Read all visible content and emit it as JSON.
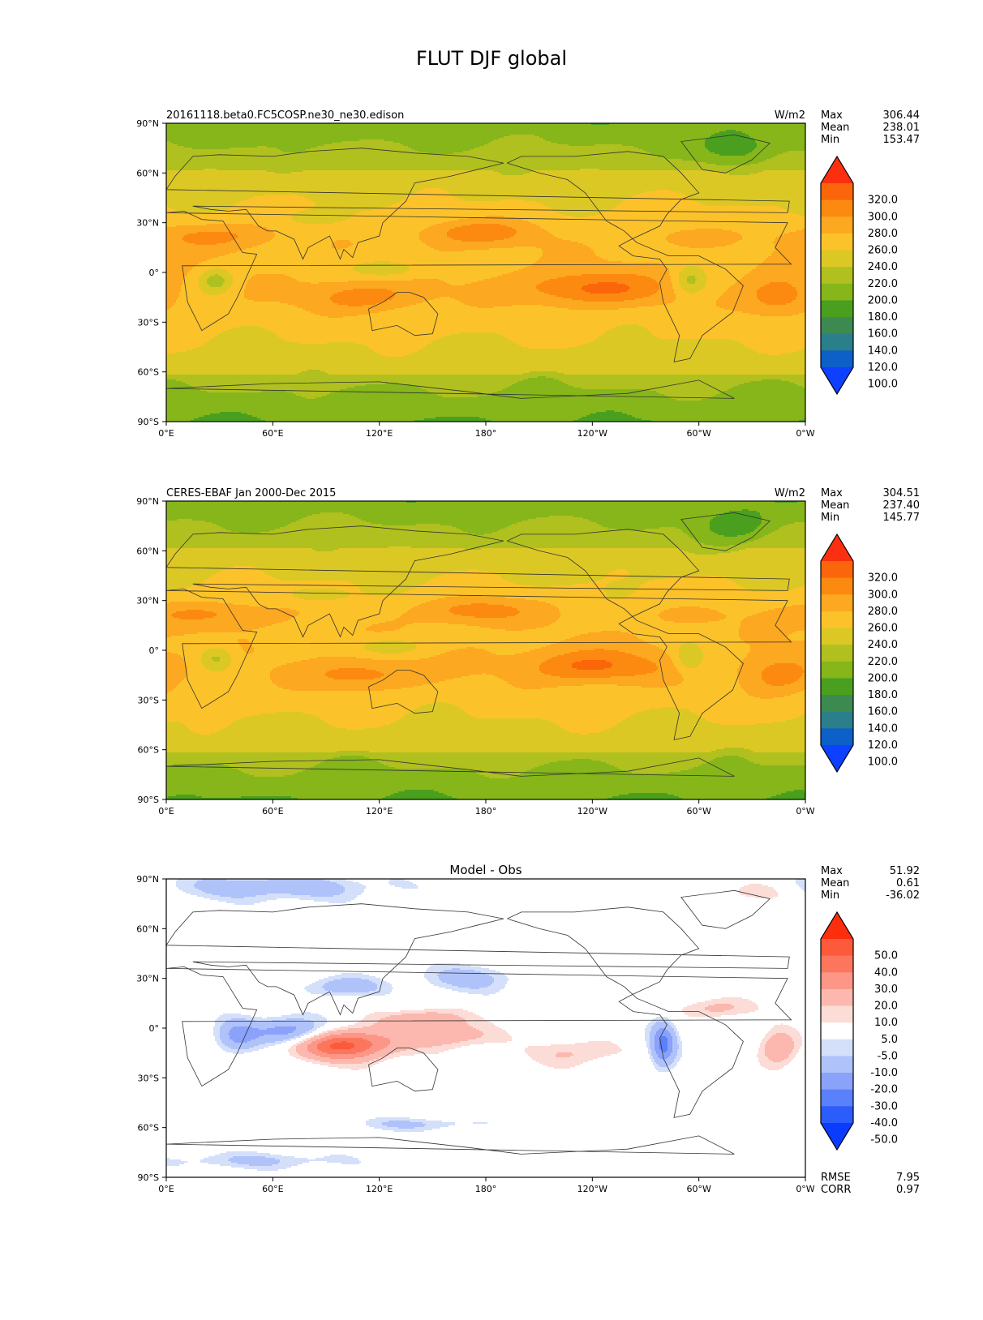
{
  "figure": {
    "title": "FLUT DJF global"
  },
  "colors": {
    "abs_levels": [
      "#0d40ff",
      "#0c60c8",
      "#2a7f8a",
      "#3d8a50",
      "#4aa01e",
      "#86b61a",
      "#b0c01f",
      "#dcc824",
      "#fcc22a",
      "#fca820",
      "#fc8a10",
      "#fc660a",
      "#fc3010"
    ],
    "diff_levels": [
      "#0a3cff",
      "#2c5cfa",
      "#5a80fa",
      "#8aa2fa",
      "#b0c2fa",
      "#d4dffa",
      "#ffffff",
      "#fcdcd6",
      "#fcb8ae",
      "#fc9686",
      "#fc765e",
      "#fc5a3a",
      "#fc2e0e"
    ],
    "land_outline": "#333333"
  },
  "chart_data": [
    {
      "type": "heatmap",
      "title": "",
      "left_title": "20161118.beta0.FC5COSP.ne30_ne30.edison",
      "units": "W/m2",
      "stats": [
        {
          "label": "Max",
          "value": "306.44"
        },
        {
          "label": "Mean",
          "value": "238.01"
        },
        {
          "label": "Min",
          "value": "153.47"
        }
      ],
      "colorbar_ticks": [
        "320.0",
        "300.0",
        "280.0",
        "260.0",
        "240.0",
        "220.0",
        "200.0",
        "180.0",
        "160.0",
        "140.0",
        "120.0",
        "100.0"
      ],
      "x_tick_labels": [
        "0°E",
        "60°E",
        "120°E",
        "180°",
        "120°W",
        "60°W",
        "0°W"
      ],
      "y_tick_labels": [
        "90°N",
        "60°N",
        "30°N",
        "0°",
        "30°S",
        "60°S",
        "90°S"
      ],
      "xlim": [
        0,
        360
      ],
      "ylim": [
        -90,
        90
      ]
    },
    {
      "type": "heatmap",
      "title": "",
      "left_title": "CERES-EBAF Jan 2000-Dec 2015",
      "units": "W/m2",
      "stats": [
        {
          "label": "Max",
          "value": "304.51"
        },
        {
          "label": "Mean",
          "value": "237.40"
        },
        {
          "label": "Min",
          "value": "145.77"
        }
      ],
      "colorbar_ticks": [
        "320.0",
        "300.0",
        "280.0",
        "260.0",
        "240.0",
        "220.0",
        "200.0",
        "180.0",
        "160.0",
        "140.0",
        "120.0",
        "100.0"
      ],
      "x_tick_labels": [
        "0°E",
        "60°E",
        "120°E",
        "180°",
        "120°W",
        "60°W",
        "0°W"
      ],
      "y_tick_labels": [
        "90°N",
        "60°N",
        "30°N",
        "0°",
        "30°S",
        "60°S",
        "90°S"
      ],
      "xlim": [
        0,
        360
      ],
      "ylim": [
        -90,
        90
      ]
    },
    {
      "type": "heatmap",
      "title": "Model - Obs",
      "left_title": "",
      "units": "",
      "stats": [
        {
          "label": "Max",
          "value": "51.92"
        },
        {
          "label": "Mean",
          "value": "0.61"
        },
        {
          "label": "Min",
          "value": "-36.02"
        }
      ],
      "colorbar_ticks": [
        "50.0",
        "40.0",
        "30.0",
        "20.0",
        "10.0",
        "5.0",
        "-5.0",
        "-10.0",
        "-20.0",
        "-30.0",
        "-40.0",
        "-50.0"
      ],
      "x_tick_labels": [
        "0°E",
        "60°E",
        "120°E",
        "180°",
        "120°W",
        "60°W",
        "0°W"
      ],
      "y_tick_labels": [
        "90°N",
        "60°N",
        "30°N",
        "0°",
        "30°S",
        "60°S",
        "90°S"
      ],
      "xlim": [
        0,
        360
      ],
      "ylim": [
        -90,
        90
      ],
      "metrics": [
        {
          "label": "RMSE",
          "value": "7.95"
        },
        {
          "label": "CORR",
          "value": "0.97"
        }
      ]
    }
  ]
}
